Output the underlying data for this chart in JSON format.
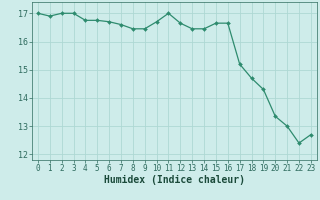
{
  "xlabel": "Humidex (Indice chaleur)",
  "ylabel": "",
  "x": [
    0,
    1,
    2,
    3,
    4,
    5,
    6,
    7,
    8,
    9,
    10,
    11,
    12,
    13,
    14,
    15,
    16,
    17,
    18,
    19,
    20,
    21,
    22,
    23
  ],
  "y": [
    17.0,
    16.9,
    17.0,
    17.0,
    16.75,
    16.75,
    16.7,
    16.6,
    16.45,
    16.45,
    16.7,
    17.0,
    16.65,
    16.45,
    16.45,
    16.65,
    16.65,
    15.2,
    14.7,
    14.3,
    13.35,
    13.0,
    12.4,
    12.7
  ],
  "line_color": "#2e8b6e",
  "marker_color": "#2e8b6e",
  "bg_color": "#ceecea",
  "grid_color": "#aed8d4",
  "tick_color": "#2e6b5e",
  "label_color": "#1a4a3a",
  "ylim": [
    11.8,
    17.4
  ],
  "xlim": [
    -0.5,
    23.5
  ],
  "yticks": [
    12,
    13,
    14,
    15,
    16,
    17
  ],
  "xticks": [
    0,
    1,
    2,
    3,
    4,
    5,
    6,
    7,
    8,
    9,
    10,
    11,
    12,
    13,
    14,
    15,
    16,
    17,
    18,
    19,
    20,
    21,
    22,
    23
  ]
}
